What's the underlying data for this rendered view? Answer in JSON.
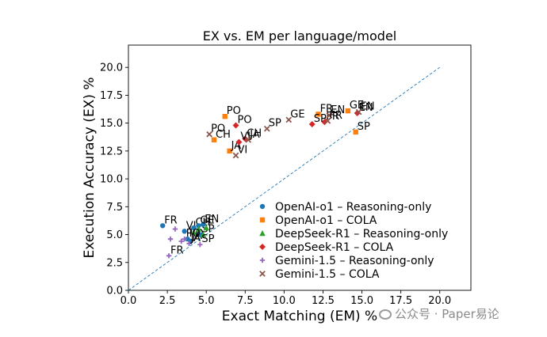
{
  "chart_data": {
    "type": "scatter",
    "title": "EX vs. EM per language/model",
    "xlabel": "Exact Matching (EM) %",
    "ylabel": "Execution Accuracy (EX) %",
    "xlim": [
      0,
      22
    ],
    "ylim": [
      0,
      22
    ],
    "xticks": [
      "0.0",
      "2.5",
      "5.0",
      "7.5",
      "10.0",
      "12.5",
      "15.0",
      "17.5",
      "20.0"
    ],
    "yticks": [
      "0.0",
      "2.5",
      "5.0",
      "7.5",
      "10.0",
      "12.5",
      "15.0",
      "17.5",
      "20.0"
    ],
    "diagonal": {
      "from": [
        0,
        0
      ],
      "to": [
        20,
        20
      ],
      "color": "#1f77b4",
      "style": "dashed"
    },
    "legend_position": "lower-right",
    "series": [
      {
        "name": "OpenAI-o1 – Reasoning-only",
        "marker": "circle",
        "color": "#1f77b4",
        "points": [
          {
            "label": "FR",
            "x": 2.2,
            "y": 5.8
          },
          {
            "label": "VI",
            "x": 3.6,
            "y": 5.3
          },
          {
            "label": "PO",
            "x": 3.8,
            "y": 4.6
          },
          {
            "label": "CH",
            "x": 4.2,
            "y": 5.6
          },
          {
            "label": "JA",
            "x": 4.0,
            "y": 4.4
          },
          {
            "label": "SP",
            "x": 4.6,
            "y": 5.0
          },
          {
            "label": "EN",
            "x": 4.8,
            "y": 5.9
          },
          {
            "label": "GE",
            "x": 4.5,
            "y": 5.8
          }
        ]
      },
      {
        "name": "OpenAI-o1 – COLA",
        "marker": "square",
        "color": "#ff7f0e",
        "points": [
          {
            "label": "PO",
            "x": 6.2,
            "y": 15.6
          },
          {
            "label": "CH",
            "x": 5.5,
            "y": 13.5
          },
          {
            "label": "JA",
            "x": 6.5,
            "y": 12.5
          },
          {
            "label": "FR",
            "x": 12.2,
            "y": 15.8
          },
          {
            "label": "GE",
            "x": 14.1,
            "y": 16.1
          },
          {
            "label": "SP",
            "x": 14.6,
            "y": 14.2
          }
        ]
      },
      {
        "name": "DeepSeek-R1 – Reasoning-only",
        "marker": "triangle",
        "color": "#2ca02c",
        "points": [
          {
            "label": "",
            "x": 4.2,
            "y": 5.2
          },
          {
            "label": "",
            "x": 4.5,
            "y": 5.5
          },
          {
            "label": "",
            "x": 4.8,
            "y": 5.0
          },
          {
            "label": "",
            "x": 5.0,
            "y": 5.6
          }
        ]
      },
      {
        "name": "DeepSeek-R1 – COLA",
        "marker": "diamond",
        "color": "#d62728",
        "points": [
          {
            "label": "PO",
            "x": 6.9,
            "y": 14.8
          },
          {
            "label": "CH",
            "x": 7.5,
            "y": 13.6
          },
          {
            "label": "VI",
            "x": 7.1,
            "y": 13.3
          },
          {
            "label": "FR",
            "x": 12.6,
            "y": 15.1
          },
          {
            "label": "SP",
            "x": 11.8,
            "y": 14.9
          },
          {
            "label": "EN",
            "x": 14.7,
            "y": 15.9
          }
        ]
      },
      {
        "name": "Gemini-1.5 – Reasoning-only",
        "marker": "plus",
        "color": "#9467bd",
        "points": [
          {
            "label": "FR",
            "x": 2.6,
            "y": 3.1
          },
          {
            "label": "PO",
            "x": 3.6,
            "y": 4.6
          },
          {
            "label": "JA",
            "x": 3.9,
            "y": 4.2
          },
          {
            "label": "SP",
            "x": 4.6,
            "y": 4.1
          },
          {
            "label": "",
            "x": 2.7,
            "y": 4.6
          },
          {
            "label": "",
            "x": 3.0,
            "y": 5.5
          },
          {
            "label": "",
            "x": 3.4,
            "y": 4.4
          }
        ]
      },
      {
        "name": "Gemini-1.5 – COLA",
        "marker": "x",
        "color": "#8c564b",
        "points": [
          {
            "label": "PO",
            "x": 5.2,
            "y": 14.0
          },
          {
            "label": "JA",
            "x": 7.7,
            "y": 13.5
          },
          {
            "label": "VI",
            "x": 6.9,
            "y": 12.1
          },
          {
            "label": "SP",
            "x": 8.9,
            "y": 14.5
          },
          {
            "label": "GE",
            "x": 10.3,
            "y": 15.3
          },
          {
            "label": "EN",
            "x": 12.9,
            "y": 15.7
          },
          {
            "label": "FR",
            "x": 12.8,
            "y": 15.2
          },
          {
            "label": "EN",
            "x": 14.8,
            "y": 16.0
          }
        ]
      }
    ]
  },
  "watermark": {
    "text": "公众号 · Paper易论"
  }
}
